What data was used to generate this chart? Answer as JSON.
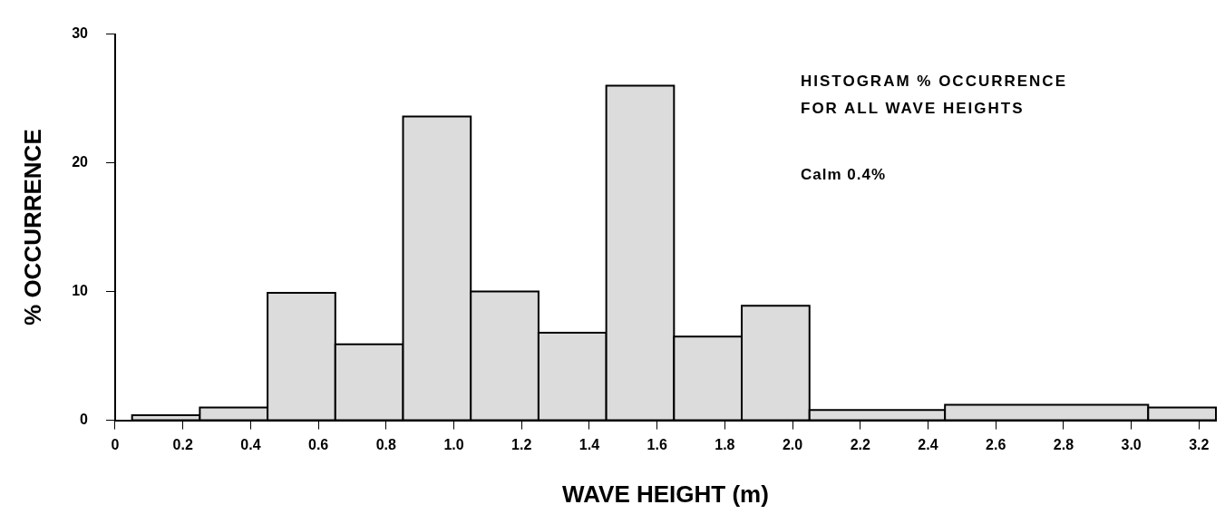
{
  "chart_data": {
    "type": "histogram",
    "title": "HISTOGRAM % OCCURRENCE FOR ALL WAVE HEIGHTS",
    "annotations": [
      "Calm 0.4%"
    ],
    "xlabel": "WAVE HEIGHT (m)",
    "ylabel": "% OCCURRENCE",
    "bins": [
      0.05,
      0.25,
      0.45,
      0.65,
      0.85,
      1.05,
      1.25,
      1.45,
      1.65,
      1.85,
      2.05,
      2.45,
      3.05,
      3.25
    ],
    "values": [
      0.4,
      1.0,
      9.9,
      5.9,
      23.6,
      10.0,
      6.8,
      26.0,
      6.5,
      8.9,
      0.8,
      1.2,
      1.0
    ],
    "color": "#dcdcdc",
    "xlim": [
      0,
      3.25
    ],
    "xticks": [
      0,
      0.2,
      0.4,
      0.6,
      0.8,
      {
        "value": 1,
        "label": "1.0"
      },
      1.2,
      1.4,
      1.6,
      1.8,
      {
        "value": 2,
        "label": "2.0"
      },
      2.2,
      2.4,
      2.6,
      2.8,
      {
        "value": 3,
        "label": "3.0"
      },
      3.2
    ],
    "ylim": [
      0,
      30
    ],
    "yticks": [
      0,
      10,
      20,
      30
    ],
    "grid": false
  }
}
